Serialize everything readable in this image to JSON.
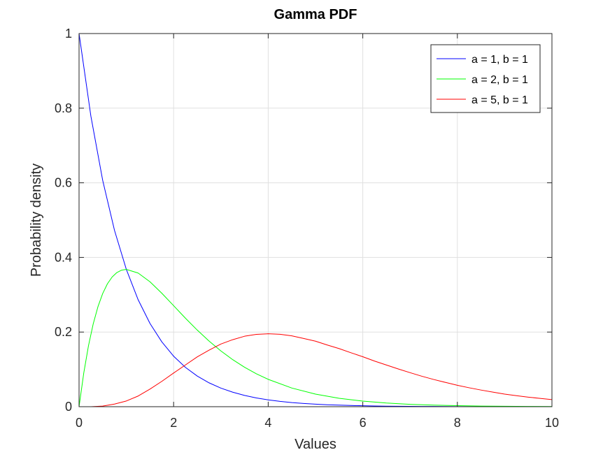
{
  "chart_data": {
    "type": "line",
    "title": "Gamma PDF",
    "xlabel": "Values",
    "ylabel": "Probability density",
    "xlim": [
      0,
      10
    ],
    "ylim": [
      0,
      1
    ],
    "xticks": [
      0,
      2,
      4,
      6,
      8,
      10
    ],
    "yticks": [
      0,
      0.2,
      0.4,
      0.6,
      0.8,
      1
    ],
    "xtick_labels": [
      "0",
      "2",
      "4",
      "6",
      "8",
      "10"
    ],
    "ytick_labels": [
      "0",
      "0.2",
      "0.4",
      "0.6",
      "0.8",
      "1"
    ],
    "grid": true,
    "legend_position": "top-right",
    "series": [
      {
        "name": "a = 1, b = 1",
        "color": "#0000ff",
        "x": [
          0,
          0.25,
          0.5,
          0.75,
          1,
          1.25,
          1.5,
          1.75,
          2,
          2.25,
          2.5,
          2.75,
          3,
          3.25,
          3.5,
          3.75,
          4,
          4.25,
          4.5,
          4.75,
          5,
          5.25,
          5.5,
          5.75,
          6,
          6.25,
          6.5,
          6.75,
          7,
          7.25,
          7.5,
          7.75,
          8,
          8.25,
          8.5,
          8.75,
          9,
          9.25,
          9.5,
          9.75,
          10
        ],
        "y": [
          1,
          0.7788,
          0.6065,
          0.4724,
          0.3679,
          0.2865,
          0.2231,
          0.1738,
          0.1353,
          0.1054,
          0.0821,
          0.0639,
          0.0498,
          0.0388,
          0.0302,
          0.0235,
          0.0183,
          0.0143,
          0.0111,
          0.0087,
          0.0067,
          0.0052,
          0.0041,
          0.0032,
          0.0025,
          0.0019,
          0.0015,
          0.0012,
          0.0009,
          0.0007,
          0.0006,
          0.0004,
          0.0003,
          0.0003,
          0.0002,
          0.0002,
          0.0001,
          0.0001,
          0.0001,
          0.0001,
          0
        ]
      },
      {
        "name": "a = 2, b = 1",
        "color": "#00ff00",
        "x": [
          0,
          0.1,
          0.2,
          0.3,
          0.4,
          0.5,
          0.6,
          0.7,
          0.8,
          0.9,
          1,
          1.25,
          1.5,
          1.75,
          2,
          2.25,
          2.5,
          2.75,
          3,
          3.25,
          3.5,
          3.75,
          4,
          4.5,
          5,
          5.5,
          6,
          6.5,
          7,
          7.5,
          8,
          8.5,
          9,
          9.5,
          10
        ],
        "y": [
          0,
          0.0905,
          0.1637,
          0.2222,
          0.2681,
          0.3033,
          0.3293,
          0.3476,
          0.3595,
          0.3659,
          0.3679,
          0.3581,
          0.3347,
          0.3041,
          0.2707,
          0.2371,
          0.2052,
          0.1758,
          0.1494,
          0.126,
          0.1057,
          0.0882,
          0.0733,
          0.05,
          0.0337,
          0.0225,
          0.0149,
          0.0098,
          0.0064,
          0.0041,
          0.0027,
          0.0017,
          0.0011,
          0.0007,
          0.0005
        ]
      },
      {
        "name": "a = 5, b = 1",
        "color": "#ff0000",
        "x": [
          0,
          0.25,
          0.5,
          0.75,
          1,
          1.25,
          1.5,
          1.75,
          2,
          2.25,
          2.5,
          2.75,
          3,
          3.25,
          3.5,
          3.75,
          4,
          4.25,
          4.5,
          4.75,
          5,
          5.25,
          5.5,
          5.75,
          6,
          6.25,
          6.5,
          6.75,
          7,
          7.25,
          7.5,
          7.75,
          8,
          8.25,
          8.5,
          8.75,
          9,
          9.25,
          9.5,
          9.75,
          10
        ],
        "y": [
          0,
          0.0001,
          0.0016,
          0.007,
          0.0153,
          0.0286,
          0.0471,
          0.0679,
          0.0902,
          0.1119,
          0.1336,
          0.1515,
          0.168,
          0.1796,
          0.1888,
          0.1939,
          0.1954,
          0.194,
          0.1898,
          0.1829,
          0.1755,
          0.1652,
          0.1557,
          0.1445,
          0.1339,
          0.1222,
          0.1116,
          0.1011,
          0.0912,
          0.0816,
          0.0729,
          0.065,
          0.0573,
          0.0507,
          0.0446,
          0.0391,
          0.0337,
          0.0294,
          0.0256,
          0.0222,
          0.0189
        ]
      }
    ]
  }
}
